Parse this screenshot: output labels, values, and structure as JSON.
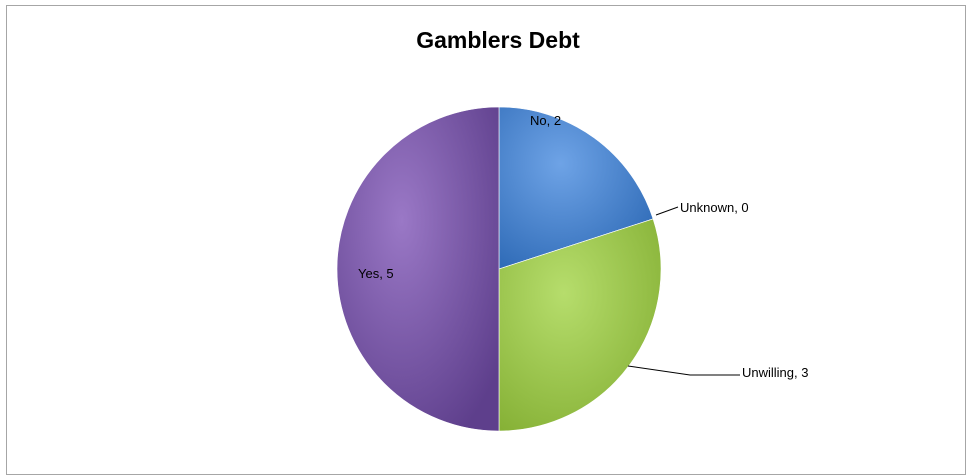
{
  "chart_data": {
    "type": "pie",
    "title": "Gamblers Debt",
    "categories": [
      "No",
      "Unknown",
      "Unwilling",
      "Yes"
    ],
    "values": [
      2,
      0,
      3,
      5
    ],
    "labels": [
      "No, 2",
      "Unknown, 0",
      "Unwilling, 3",
      "Yes, 5"
    ],
    "colors": [
      "#4a86d4",
      "#4aa3cf",
      "#9bc84b",
      "#7a5aa8"
    ],
    "legend": "none"
  }
}
